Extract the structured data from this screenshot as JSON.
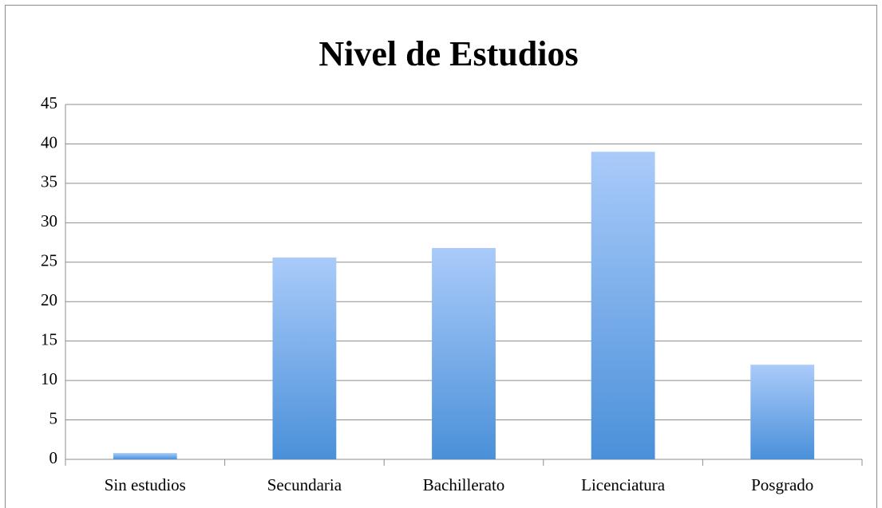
{
  "chart_data": {
    "type": "bar",
    "title": "Nivel de Estudios",
    "categories": [
      "Sin estudios",
      "Secundaria",
      "Bachillerato",
      "Licenciatura",
      "Posgrado"
    ],
    "values": [
      0.8,
      25.6,
      26.8,
      39,
      12
    ],
    "color": "#4a90d9",
    "ylim": [
      0,
      45
    ],
    "yticks": [
      0,
      5,
      10,
      15,
      20,
      25,
      30,
      35,
      40,
      45
    ],
    "grid": true
  }
}
